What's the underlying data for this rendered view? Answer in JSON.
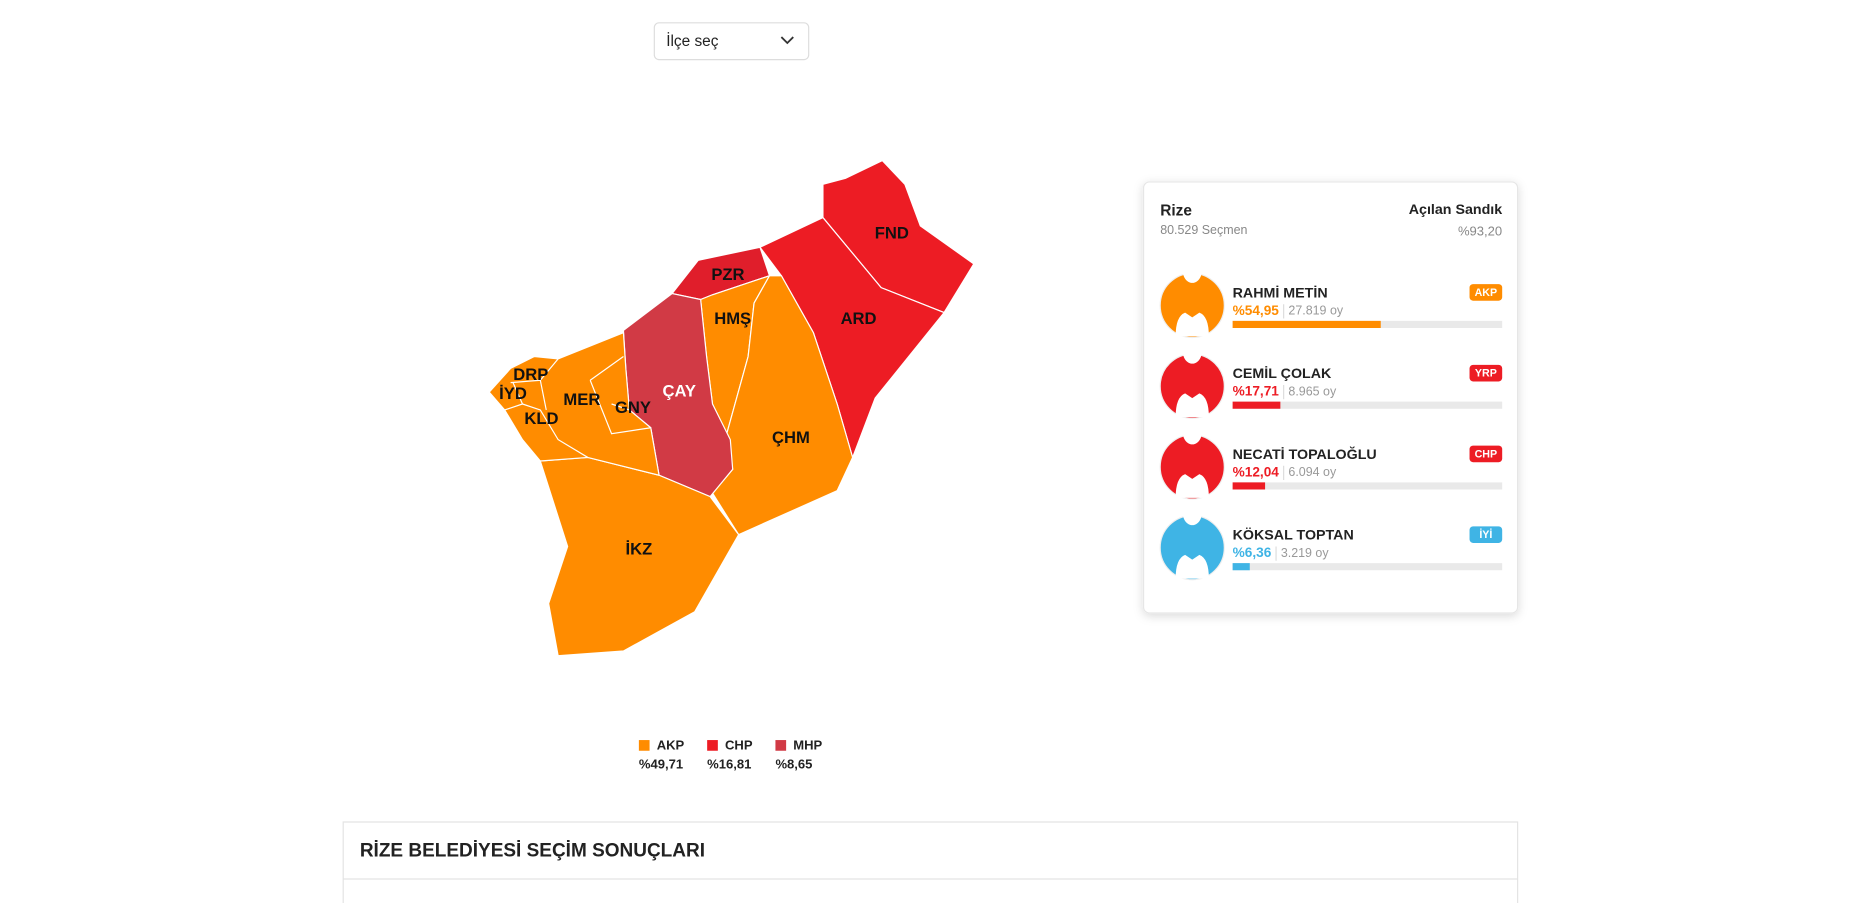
{
  "dropdown": {
    "placeholder": "İlçe seç"
  },
  "map": {
    "districts": [
      "FND",
      "PZR",
      "ARD",
      "HMŞ",
      "ÇAY",
      "DRP",
      "İYD",
      "MER",
      "GNY",
      "KLD",
      "ÇHM",
      "İKZ"
    ]
  },
  "legend": [
    {
      "party": "AKP",
      "share": "%49,71",
      "color": "#ff8c00"
    },
    {
      "party": "CHP",
      "share": "%16,81",
      "color": "#ed1c24"
    },
    {
      "party": "MHP",
      "share": "%8,65",
      "color": "#d13a45"
    }
  ],
  "summary": {
    "place": "Rize",
    "voters": "80.529 Seçmen",
    "opened_label": "Açılan Sandık",
    "opened": "%93,20"
  },
  "candidates": [
    {
      "name": "RAHMİ METİN",
      "party": "AKP",
      "share": {
        "value": 54.95,
        "label": "%54,95"
      },
      "votes": "27.819 oy",
      "color": "#ff8c00"
    },
    {
      "name": "CEMİL ÇOLAK",
      "party": "YRP",
      "share": {
        "value": 17.71,
        "label": "%17,71"
      },
      "votes": "8.965 oy",
      "color": "#ed1c24"
    },
    {
      "name": "NECATİ TOPALOĞLU",
      "party": "CHP",
      "share": {
        "value": 12.04,
        "label": "%12,04"
      },
      "votes": "6.094 oy",
      "color": "#ed1c24"
    },
    {
      "name": "KÖKSAL TOPTAN",
      "party": "İYİ",
      "share": {
        "value": 6.36,
        "label": "%6,36"
      },
      "votes": "3.219 oy",
      "color": "#3fb4e5"
    }
  ],
  "section": {
    "title": "RİZE BELEDİYESİ SEÇİM SONUÇLARI"
  }
}
